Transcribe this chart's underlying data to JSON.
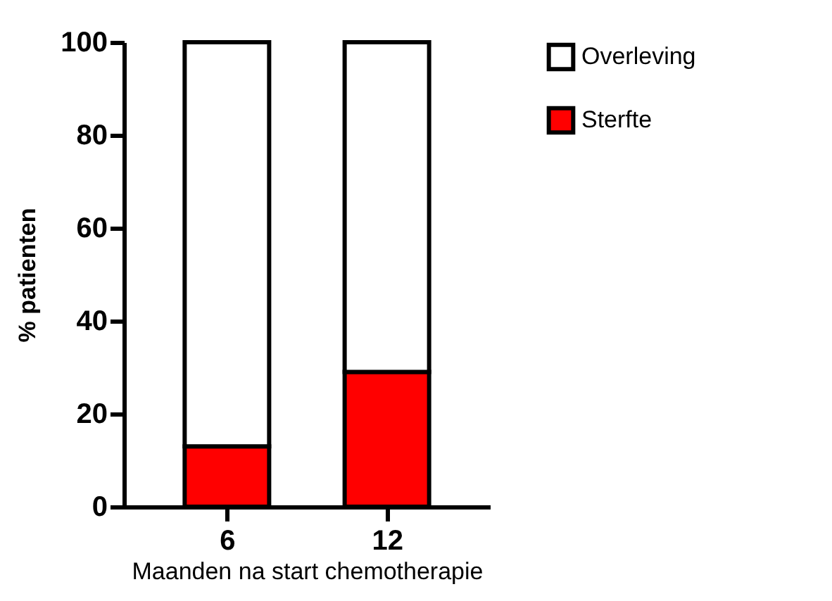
{
  "chart_data": {
    "type": "bar",
    "stacked": true,
    "categories": [
      "6",
      "12"
    ],
    "xlabel": "Maanden na start chemotherapie",
    "ylabel": "% patienten",
    "series": [
      {
        "name": "Sterfte",
        "color": "#ff0000",
        "values": [
          13,
          29
        ]
      },
      {
        "name": "Overleving",
        "color": "#ffffff",
        "values": [
          87,
          71
        ]
      }
    ],
    "ylim": [
      0,
      100
    ],
    "yticks": [
      0,
      20,
      40,
      60,
      80,
      100
    ],
    "grid": false,
    "legend": "right"
  }
}
